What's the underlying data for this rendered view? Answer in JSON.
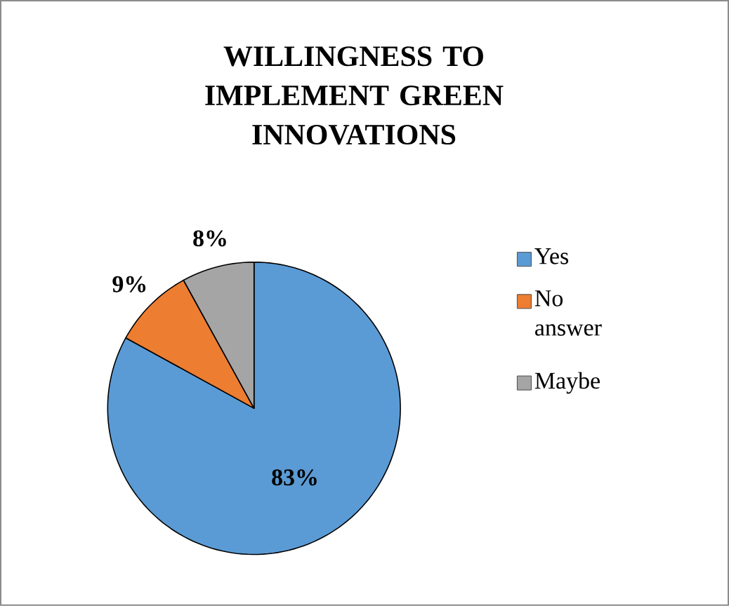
{
  "chart_data": {
    "type": "pie",
    "title": "WILLINGNESS TO IMPLEMENT GREEN INNOVATIONS",
    "categories": [
      "Yes",
      "No answer",
      "Maybe"
    ],
    "values": [
      83,
      9,
      8
    ],
    "colors": [
      "#5b9bd5",
      "#ed7d31",
      "#a5a5a5"
    ],
    "value_labels": [
      "83%",
      "9%",
      "8%"
    ],
    "legend": "right"
  }
}
